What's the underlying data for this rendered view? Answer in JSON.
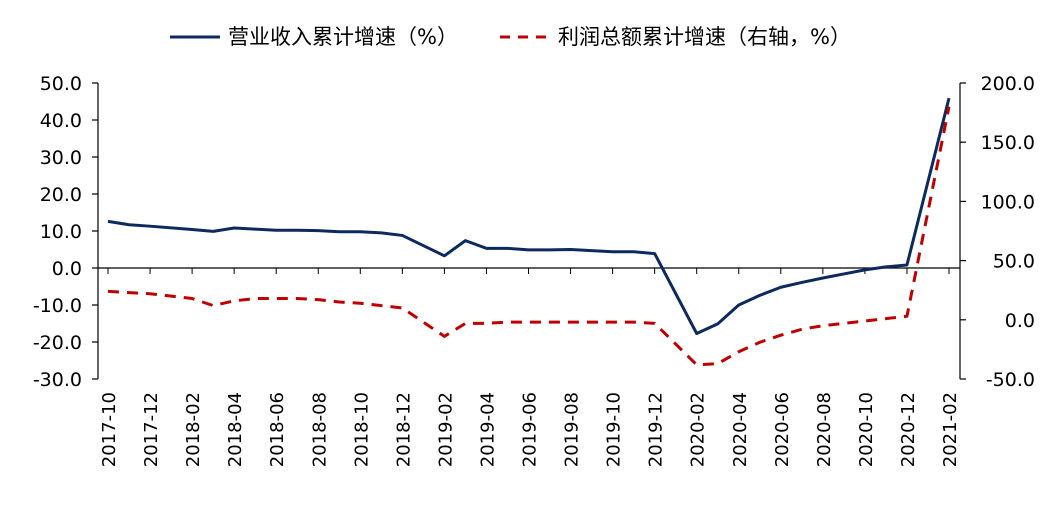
{
  "chart_data": {
    "type": "line",
    "x": [
      "2017-10",
      "2017-11",
      "2017-12",
      "2018-01",
      "2018-02",
      "2018-03",
      "2018-04",
      "2018-05",
      "2018-06",
      "2018-07",
      "2018-08",
      "2018-09",
      "2018-10",
      "2018-11",
      "2018-12",
      "2019-01",
      "2019-02",
      "2019-03",
      "2019-04",
      "2019-05",
      "2019-06",
      "2019-07",
      "2019-08",
      "2019-09",
      "2019-10",
      "2019-11",
      "2019-12",
      "2020-01",
      "2020-02",
      "2020-03",
      "2020-04",
      "2020-05",
      "2020-06",
      "2020-07",
      "2020-08",
      "2020-09",
      "2020-10",
      "2020-11",
      "2020-12",
      "2021-01",
      "2021-02"
    ],
    "xticks": [
      "2017-10",
      "2017-12",
      "2018-02",
      "2018-04",
      "2018-06",
      "2018-08",
      "2018-10",
      "2018-12",
      "2019-02",
      "2019-04",
      "2019-06",
      "2019-08",
      "2019-10",
      "2019-12",
      "2020-02",
      "2020-04",
      "2020-06",
      "2020-08",
      "2020-10",
      "2020-12",
      "2021-02"
    ],
    "series": [
      {
        "name": "营业收入累计增速（%）",
        "axis": "left",
        "color": "#0d2a5e",
        "dash": "solid",
        "values": [
          12.6,
          11.7,
          11.3,
          null,
          10.4,
          9.9,
          10.8,
          10.5,
          10.2,
          10.2,
          10.1,
          9.8,
          9.8,
          9.5,
          8.8,
          null,
          3.3,
          7.4,
          5.3,
          5.3,
          4.9,
          4.9,
          5.0,
          4.7,
          4.4,
          4.4,
          3.9,
          null,
          -17.7,
          -15.1,
          -10.0,
          -7.4,
          -5.2,
          -3.9,
          -2.7,
          -1.6,
          -0.5,
          0.3,
          0.8,
          null,
          45.9
        ]
      },
      {
        "name": "利润总额累计增速（右轴，%）",
        "axis": "right",
        "color": "#c00000",
        "dash": "dashed",
        "values": [
          24,
          23,
          22,
          null,
          18,
          12,
          16,
          18,
          18,
          18,
          17,
          15,
          14,
          12,
          10,
          null,
          -14,
          -3,
          -3,
          -2,
          -2,
          -2,
          -2,
          -2,
          -2,
          -2,
          -3,
          null,
          -38,
          -37,
          -27,
          -19,
          -13,
          -8,
          -5,
          -3,
          -1,
          1,
          3,
          null,
          180
        ]
      }
    ],
    "yleft": {
      "ylim": [
        -30,
        50
      ],
      "ticks": [
        "50.0",
        "40.0",
        "30.0",
        "20.0",
        "10.0",
        "0.0",
        "-10.0",
        "-20.0",
        "-30.0"
      ]
    },
    "yright": {
      "ylim": [
        -50,
        200
      ],
      "ticks": [
        "200.0",
        "150.0",
        "100.0",
        "50.0",
        "0.0",
        "-50.0"
      ]
    },
    "legend_position": "top",
    "grid": false
  }
}
